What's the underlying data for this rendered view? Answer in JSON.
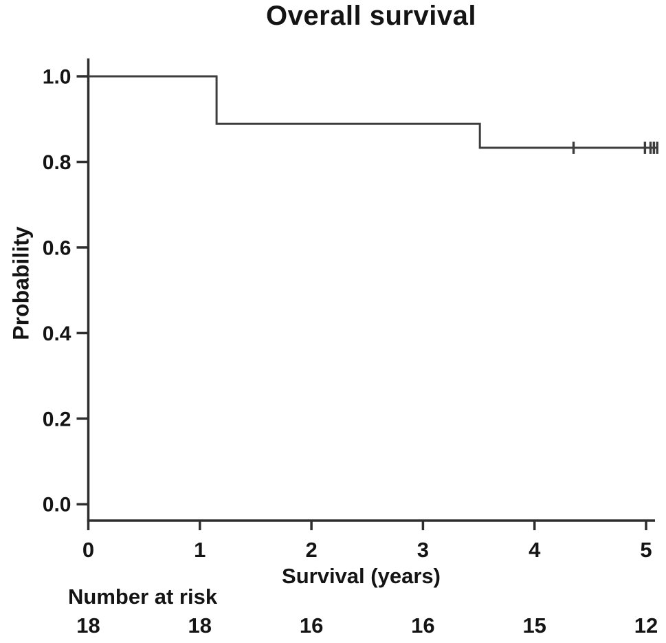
{
  "chart_data": {
    "type": "line",
    "subtype": "kaplan-meier-step",
    "title": "Overall survival",
    "xlabel": "Survival (years)",
    "ylabel": "Probability",
    "xlim": [
      0,
      5.11
    ],
    "ylim": [
      0.0,
      1.0
    ],
    "grid": false,
    "legend": "none",
    "x_ticks": [
      {
        "label": "0",
        "value": 0
      },
      {
        "label": "1",
        "value": 1
      },
      {
        "label": "2",
        "value": 2
      },
      {
        "label": "3",
        "value": 3
      },
      {
        "label": "4",
        "value": 4
      },
      {
        "label": "5",
        "value": 5
      }
    ],
    "y_ticks": [
      {
        "label": "0.0",
        "value": 0.0
      },
      {
        "label": "0.2",
        "value": 0.2
      },
      {
        "label": "0.4",
        "value": 0.4
      },
      {
        "label": "0.6",
        "value": 0.6
      },
      {
        "label": "0.8",
        "value": 0.8
      },
      {
        "label": "1.0",
        "value": 1.0
      }
    ],
    "series": [
      {
        "name": "Overall survival",
        "color": "#3d3d3d",
        "step_points": [
          [
            0,
            1.0
          ],
          [
            1.15,
            1.0
          ],
          [
            1.15,
            0.889
          ],
          [
            3.51,
            0.889
          ],
          [
            3.51,
            0.833
          ],
          [
            5.11,
            0.833
          ]
        ],
        "events": [
          {
            "t": 1.15,
            "from": 1.0,
            "to": 0.889
          },
          {
            "t": 3.51,
            "from": 0.889,
            "to": 0.833
          }
        ],
        "censor_marks": [
          {
            "t": 4.35,
            "p": 0.833
          },
          {
            "t": 4.99,
            "p": 0.833
          },
          {
            "t": 5.04,
            "p": 0.833
          },
          {
            "t": 5.07,
            "p": 0.833
          },
          {
            "t": 5.1,
            "p": 0.833
          }
        ]
      }
    ],
    "risk_table": {
      "label": "Number at risk",
      "times": [
        0,
        1,
        2,
        3,
        4,
        5
      ],
      "counts": [
        18,
        18,
        16,
        16,
        15,
        12
      ]
    }
  },
  "style": {
    "curve_color": "#3d3d3d",
    "axis_color": "#2e2e2e",
    "text_color": "#141414",
    "background": "#ffffff"
  }
}
